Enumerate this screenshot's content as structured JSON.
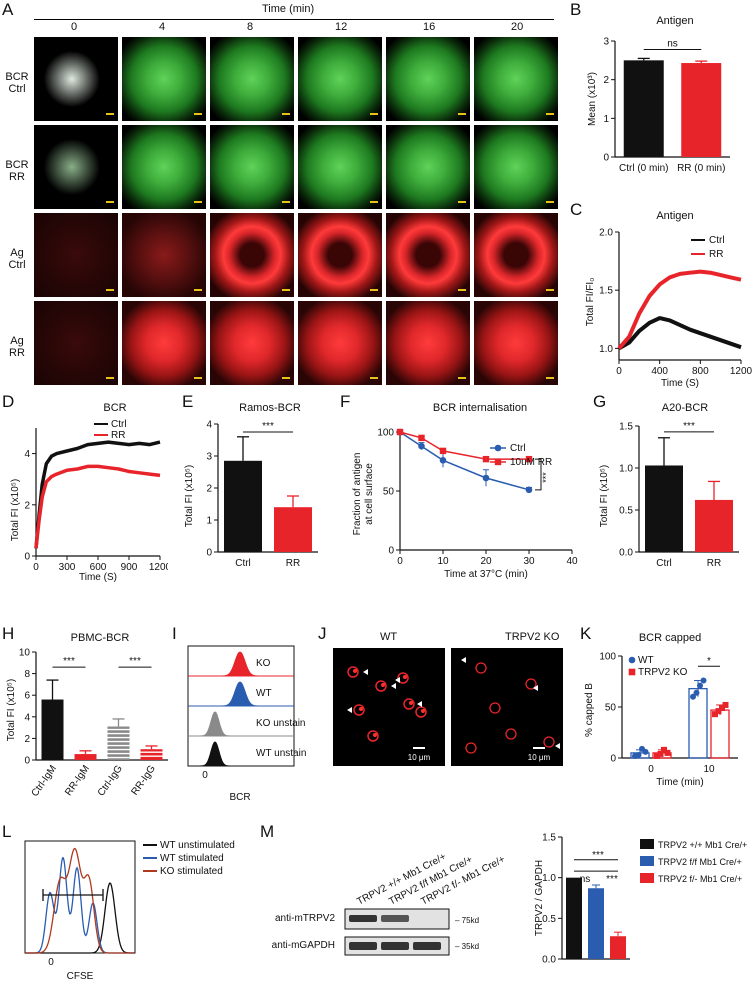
{
  "panels": {
    "A": {
      "letter": "A",
      "time_label": "Time (min)",
      "times": [
        "0",
        "4",
        "8",
        "12",
        "16",
        "20"
      ],
      "rows": [
        {
          "line1": "BCR",
          "line2": "Ctrl",
          "color": "green"
        },
        {
          "line1": "BCR",
          "line2": "RR",
          "color": "green"
        },
        {
          "line1": "Ag",
          "line2": "Ctrl",
          "color": "red"
        },
        {
          "line1": "Ag",
          "line2": "RR",
          "color": "red"
        }
      ]
    },
    "B": {
      "letter": "B",
      "title": "Antigen",
      "ylabel": "Mean (x10³)",
      "sig": "ns"
    },
    "C": {
      "letter": "C",
      "title": "Antigen",
      "ylabel": "Total FI/FI₀",
      "xlabel": "Time (S)"
    },
    "D": {
      "letter": "D",
      "title": "BCR",
      "ylabel": "Total FI  (x10⁵)",
      "xlabel": "Time (S)"
    },
    "E": {
      "letter": "E",
      "title": "Ramos-BCR",
      "ylabel": "Total FI  (x10⁵)",
      "sig": "***"
    },
    "F": {
      "letter": "F",
      "title": "BCR internalisation",
      "ylabel1": "Fraction of antigen",
      "ylabel2": "at cell surface",
      "xlabel": "Time at 37°C (min)",
      "sig": "***"
    },
    "G": {
      "letter": "G",
      "title": "A20-BCR",
      "ylabel": "Total FI  (x10⁵)",
      "sig": "***"
    },
    "H": {
      "letter": "H",
      "title": "PBMC-BCR",
      "ylabel": "Total FI  (x10⁵)",
      "sig1": "***",
      "sig2": "***"
    },
    "I": {
      "letter": "I",
      "xlabel": "BCR",
      "zero": "0",
      "labels": [
        "KO",
        "WT",
        "KO unstain",
        "WT unstain"
      ]
    },
    "J": {
      "letter": "J",
      "left_title": "WT",
      "right_title": "TRPV2 KO",
      "scale": "10 μm"
    },
    "K": {
      "letter": "K",
      "title": "BCR  capped",
      "ylabel": "% capped B",
      "xlabel": "Time (min)",
      "legend": [
        "WT",
        "TRPV2 KO"
      ],
      "sig": "*"
    },
    "L": {
      "letter": "L",
      "xlabel": "CFSE",
      "zero": "0",
      "legend": [
        "WT unstimulated",
        "WT stimulated",
        "KO stimulated"
      ]
    },
    "M": {
      "letter": "M",
      "lanes": [
        "TRPV2 +/+ Mb1 Cre/+",
        "TRPV2 f/f Mb1 Cre/+",
        "TRPV2 f/- Mb1 Cre/+"
      ],
      "blot1": "anti-mTRPV2",
      "blot2": "anti-mGAPDH",
      "kd1": "75kd",
      "kd2": "35kd",
      "ylabel": "TRPV2 / GAPDH",
      "sig_ns": "ns",
      "sig_a": "***",
      "sig_b": "***",
      "legend": [
        "TRPV2 +/+ Mb1 Cre/+",
        "TRPV2 f/f Mb1 Cre/+",
        "TRPV2 f/- Mb1 Cre/+"
      ]
    }
  },
  "colors": {
    "black": "#111111",
    "red": "#e8242b",
    "blue": "#2a5db0",
    "gray": "#8a8a8a"
  },
  "chart_data": [
    {
      "panel": "B",
      "type": "bar",
      "title": "Antigen",
      "ylabel": "Mean (x10³)",
      "categories": [
        "Ctrl (0 min)",
        "RR (0 min)"
      ],
      "values": [
        2.5,
        2.43
      ],
      "errors": [
        0.05,
        0.05
      ],
      "ylim": [
        0,
        3
      ],
      "yticks": [
        "0",
        "1",
        "2",
        "3"
      ]
    },
    {
      "panel": "C",
      "type": "line",
      "title": "Antigen",
      "xlabel": "Time (S)",
      "ylabel": "Total FI/FI₀",
      "xlim": [
        0,
        1200
      ],
      "ylim": [
        0.9,
        2.0
      ],
      "xticks": [
        "0",
        "400",
        "800",
        "1200"
      ],
      "yticks": [
        "1.0",
        "1.5",
        "2.0"
      ],
      "series": [
        {
          "name": "Ctrl",
          "x": [
            0,
            100,
            200,
            300,
            400,
            500,
            600,
            700,
            800,
            900,
            1000,
            1100,
            1200
          ],
          "y": [
            1.0,
            1.05,
            1.15,
            1.22,
            1.26,
            1.24,
            1.2,
            1.16,
            1.13,
            1.1,
            1.07,
            1.04,
            1.01
          ]
        },
        {
          "name": "RR",
          "x": [
            0,
            100,
            200,
            300,
            400,
            500,
            600,
            700,
            800,
            900,
            1000,
            1100,
            1200
          ],
          "y": [
            1.0,
            1.1,
            1.3,
            1.45,
            1.55,
            1.61,
            1.64,
            1.65,
            1.66,
            1.65,
            1.63,
            1.61,
            1.59
          ]
        }
      ]
    },
    {
      "panel": "D",
      "type": "line",
      "title": "BCR",
      "xlabel": "Time (S)",
      "ylabel": "Total FI  (x10⁵)",
      "xlim": [
        0,
        1200
      ],
      "ylim": [
        0,
        5
      ],
      "xticks": [
        "0",
        "300",
        "600",
        "900",
        "1200"
      ],
      "yticks": [
        "0",
        "2",
        "4"
      ],
      "series": [
        {
          "name": "Ctrl",
          "x": [
            0,
            30,
            60,
            100,
            150,
            200,
            300,
            400,
            500,
            600,
            700,
            800,
            900,
            1000,
            1100,
            1200
          ],
          "y": [
            0.3,
            1.6,
            2.8,
            3.6,
            3.9,
            4.0,
            4.1,
            4.2,
            4.35,
            4.4,
            4.45,
            4.4,
            4.35,
            4.4,
            4.35,
            4.45
          ]
        },
        {
          "name": "RR",
          "x": [
            0,
            30,
            60,
            100,
            150,
            200,
            300,
            400,
            500,
            600,
            700,
            800,
            900,
            1000,
            1100,
            1200
          ],
          "y": [
            0.3,
            1.4,
            2.3,
            2.9,
            3.1,
            3.2,
            3.35,
            3.4,
            3.5,
            3.5,
            3.45,
            3.4,
            3.3,
            3.25,
            3.2,
            3.15
          ]
        }
      ]
    },
    {
      "panel": "E",
      "type": "bar",
      "title": "Ramos-BCR",
      "ylabel": "Total FI  (x10⁵)",
      "categories": [
        "Ctrl",
        "RR"
      ],
      "values": [
        2.85,
        1.4
      ],
      "errors": [
        0.75,
        0.35
      ],
      "ylim": [
        0,
        4
      ],
      "yticks": [
        "0",
        "1",
        "2",
        "3",
        "4"
      ]
    },
    {
      "panel": "F",
      "type": "line",
      "title": "BCR internalisation",
      "xlabel": "Time at 37°C (min)",
      "ylabel": "Fraction of antigen at cell surface",
      "xlim": [
        0,
        40
      ],
      "ylim": [
        0,
        100
      ],
      "xticks": [
        "0",
        "10",
        "20",
        "30",
        "40"
      ],
      "yticks": [
        "0",
        "50",
        "100"
      ],
      "series": [
        {
          "name": "Ctrl",
          "x": [
            0,
            5,
            10,
            20,
            30
          ],
          "y": [
            100,
            88,
            76,
            61,
            51
          ],
          "errors": [
            0,
            3,
            6,
            7,
            2
          ]
        },
        {
          "name": "10uM RR",
          "x": [
            0,
            5,
            10,
            20,
            30
          ],
          "y": [
            100,
            95,
            84,
            77,
            77
          ],
          "errors": [
            0,
            2,
            2,
            2,
            2
          ]
        }
      ]
    },
    {
      "panel": "G",
      "type": "bar",
      "title": "A20-BCR",
      "ylabel": "Total FI  (x10⁵)",
      "categories": [
        "Ctrl",
        "RR"
      ],
      "values": [
        1.03,
        0.62
      ],
      "errors": [
        0.33,
        0.22
      ],
      "ylim": [
        0,
        1.5
      ],
      "yticks": [
        "0.0",
        "0.5",
        "1.0",
        "1.5"
      ]
    },
    {
      "panel": "H",
      "type": "bar",
      "title": "PBMC-BCR",
      "ylabel": "Total FI  (x10⁵)",
      "categories": [
        "Ctrl-IgM",
        "RR-IgM",
        "Ctrl-IgG",
        "RR-IgG"
      ],
      "values": [
        5.6,
        0.55,
        3.1,
        1.0
      ],
      "errors": [
        1.8,
        0.3,
        0.7,
        0.3
      ],
      "ylim": [
        0,
        10
      ],
      "yticks": [
        "0",
        "2",
        "4",
        "6",
        "8",
        "10"
      ]
    },
    {
      "panel": "K",
      "type": "bar",
      "title": "BCR  capped",
      "xlabel": "Time (min)",
      "ylabel": "% capped B",
      "categories": [
        "0",
        "10"
      ],
      "ylim": [
        0,
        100
      ],
      "yticks": [
        "0",
        "50",
        "100"
      ],
      "series": [
        {
          "name": "WT",
          "values": [
            5,
            68
          ],
          "errors": [
            3,
            8
          ],
          "points": [
            [
              2,
              3,
              9,
              6
            ],
            [
              60,
              64,
              71,
              76
            ]
          ]
        },
        {
          "name": "TRPV2 KO",
          "values": [
            5,
            47
          ],
          "errors": [
            3,
            5
          ],
          "points": [
            [
              2,
              4,
              8,
              5
            ],
            [
              43,
              46,
              49,
              52
            ]
          ]
        }
      ]
    },
    {
      "panel": "M",
      "type": "bar",
      "ylabel": "TRPV2 / GAPDH",
      "categories": [
        "TRPV2 +/+ Mb1 Cre/+",
        "TRPV2 f/f Mb1 Cre/+",
        "TRPV2 f/- Mb1 Cre/+"
      ],
      "values": [
        1.0,
        0.87,
        0.28
      ],
      "errors": [
        0.0,
        0.04,
        0.05
      ],
      "ylim": [
        0,
        1.5
      ],
      "yticks": [
        "0.0",
        "0.5",
        "1.0",
        "1.5"
      ]
    }
  ]
}
